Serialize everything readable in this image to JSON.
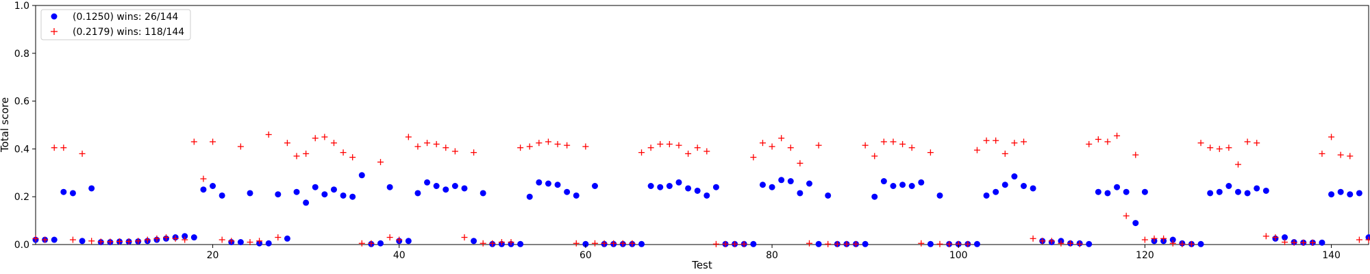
{
  "chart_data": {
    "type": "scatter",
    "xlabel": "Test",
    "ylabel": "Total score",
    "xlim": [
      1,
      144
    ],
    "ylim": [
      0,
      1.0
    ],
    "x_ticks": [
      20,
      40,
      60,
      80,
      100,
      120,
      140
    ],
    "x_tick_labels": [
      "20",
      "40",
      "60",
      "80",
      "100",
      "120",
      "140"
    ],
    "y_ticks": [
      0.0,
      0.2,
      0.4,
      0.6,
      0.8,
      1.0
    ],
    "y_tick_labels": [
      "0.0",
      "0.2",
      "0.4",
      "0.6",
      "0.8",
      "1.0"
    ],
    "grid": false,
    "legend_position": "top-left",
    "series": [
      {
        "name": "(0.1250) wins: 26/144",
        "color": "#0000ff",
        "marker": "circle",
        "values": [
          0.02,
          0.02,
          0.02,
          0.22,
          0.215,
          0.015,
          0.235,
          0.01,
          0.01,
          0.012,
          0.012,
          0.013,
          0.015,
          0.02,
          0.025,
          0.03,
          0.035,
          0.03,
          0.23,
          0.245,
          0.205,
          0.01,
          0.01,
          0.215,
          0.005,
          0.005,
          0.21,
          0.025,
          0.22,
          0.175,
          0.24,
          0.21,
          0.23,
          0.205,
          0.2,
          0.29,
          0.002,
          0.005,
          0.24,
          0.015,
          0.015,
          0.215,
          0.26,
          0.245,
          0.23,
          0.245,
          0.235,
          0.015,
          0.215,
          0.002,
          0.002,
          0.002,
          0.002,
          0.2,
          0.26,
          0.255,
          0.25,
          0.22,
          0.205,
          0.002,
          0.245,
          0.002,
          0.002,
          0.002,
          0.002,
          0.002,
          0.245,
          0.24,
          0.245,
          0.26,
          0.235,
          0.225,
          0.205,
          0.24,
          0.002,
          0.002,
          0.002,
          0.002,
          0.25,
          0.24,
          0.27,
          0.265,
          0.215,
          0.255,
          0.002,
          0.205,
          0.002,
          0.002,
          0.002,
          0.002,
          0.2,
          0.265,
          0.245,
          0.25,
          0.245,
          0.26,
          0.002,
          0.205,
          0.002,
          0.002,
          0.002,
          0.002,
          0.205,
          0.22,
          0.25,
          0.285,
          0.245,
          0.235,
          0.015,
          0.01,
          0.015,
          0.005,
          0.005,
          0.002,
          0.22,
          0.215,
          0.24,
          0.22,
          0.09,
          0.22,
          0.015,
          0.015,
          0.02,
          0.005,
          0.002,
          0.002,
          0.215,
          0.22,
          0.245,
          0.22,
          0.215,
          0.235,
          0.225,
          0.025,
          0.03,
          0.01,
          0.008,
          0.008,
          0.008,
          0.21,
          0.22,
          0.21,
          0.215,
          0.03,
          0.025,
          0.03
        ]
      },
      {
        "name": "(0.2179) wins: 118/144",
        "color": "#ff0000",
        "marker": "plus",
        "values": [
          0.025,
          0.02,
          0.405,
          0.405,
          0.02,
          0.38,
          0.015,
          0.012,
          0.012,
          0.013,
          0.013,
          0.015,
          0.02,
          0.025,
          0.03,
          0.025,
          0.02,
          0.43,
          0.275,
          0.43,
          0.02,
          0.015,
          0.41,
          0.01,
          0.015,
          0.46,
          0.03,
          0.425,
          0.37,
          0.38,
          0.445,
          0.45,
          0.425,
          0.385,
          0.365,
          0.005,
          0.005,
          0.345,
          0.03,
          0.02,
          0.45,
          0.41,
          0.425,
          0.42,
          0.405,
          0.39,
          0.03,
          0.385,
          0.005,
          0.005,
          0.01,
          0.01,
          0.405,
          0.41,
          0.425,
          0.43,
          0.42,
          0.415,
          0.005,
          0.41,
          0.005,
          0.005,
          0.005,
          0.005,
          0.005,
          0.385,
          0.405,
          0.42,
          0.42,
          0.415,
          0.38,
          0.405,
          0.39,
          0.002,
          0.002,
          0.002,
          0.002,
          0.365,
          0.425,
          0.41,
          0.445,
          0.405,
          0.34,
          0.005,
          0.415,
          0.002,
          0.002,
          0.002,
          0.002,
          0.415,
          0.37,
          0.43,
          0.43,
          0.42,
          0.405,
          0.005,
          0.385,
          0.002,
          0.002,
          0.002,
          0.002,
          0.395,
          0.435,
          0.435,
          0.38,
          0.425,
          0.43,
          0.025,
          0.015,
          0.015,
          0.005,
          0.005,
          0.002,
          0.42,
          0.44,
          0.43,
          0.455,
          0.12,
          0.375,
          0.02,
          0.025,
          0.025,
          0.005,
          0.002,
          0.002,
          0.425,
          0.405,
          0.4,
          0.405,
          0.335,
          0.43,
          0.425,
          0.035,
          0.03,
          0.01,
          0.008,
          0.008,
          0.008,
          0.38,
          0.45,
          0.375,
          0.37,
          0.02,
          0.02,
          0.03
        ]
      }
    ]
  }
}
